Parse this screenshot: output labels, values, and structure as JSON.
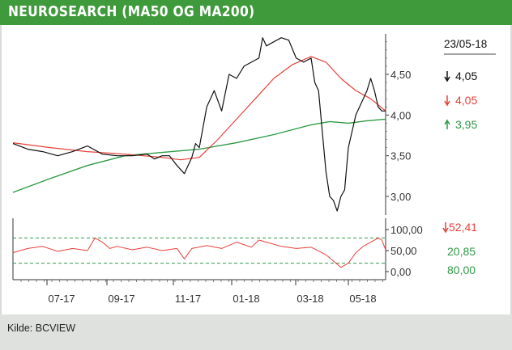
{
  "header": {
    "title": "NEUROSEARCH (MA50 OG MA200)"
  },
  "footer": {
    "source": "Kilde: BCVIEW"
  },
  "colors": {
    "brand": "#3f9a3b",
    "price": "#111111",
    "ma50": "#e8403a",
    "ma200": "#2f9a46",
    "rsi": "#e8403a"
  },
  "legend": {
    "date": "23/05-18",
    "items": [
      {
        "value": "4,05",
        "color": "#111111",
        "arrow": "down"
      },
      {
        "value": "4,05",
        "color": "#e8403a",
        "arrow": "down"
      },
      {
        "value": "3,95",
        "color": "#2f9a46",
        "arrow": "up"
      }
    ]
  },
  "rsi_legend": {
    "items": [
      {
        "value": "52,41",
        "color": "#e8403a",
        "arrow": "down"
      },
      {
        "value": "20,85",
        "color": "#2f9a46",
        "arrow": "none"
      },
      {
        "value": "80,00",
        "color": "#2f9a46",
        "arrow": "none"
      }
    ]
  },
  "chart_data": [
    {
      "type": "line",
      "title": "NEUROSEARCH (MA50 OG MA200)",
      "x_tick_labels": [
        "07-17",
        "09-17",
        "11-17",
        "01-18",
        "03-18",
        "05-18"
      ],
      "y_tick_labels": [
        "4,50",
        "4,00",
        "3,50",
        "3,00"
      ],
      "ylim": [
        2.75,
        5.0
      ],
      "grid": false,
      "legend_position": "right",
      "series": [
        {
          "name": "",
          "color": "#111111",
          "x": [
            0,
            4,
            8,
            12,
            16,
            20,
            24,
            28,
            32,
            36,
            38,
            40,
            42,
            44,
            46,
            48,
            49,
            50,
            52,
            54,
            56,
            58,
            60,
            62,
            64,
            66,
            67,
            68,
            70,
            72,
            74,
            76,
            78,
            80,
            81,
            82,
            83,
            84,
            85,
            86,
            87,
            88,
            89,
            90,
            91,
            92,
            93,
            94,
            95,
            96,
            97,
            98,
            99,
            100
          ],
          "y": [
            3.65,
            3.58,
            3.55,
            3.5,
            3.55,
            3.62,
            3.52,
            3.5,
            3.5,
            3.52,
            3.46,
            3.5,
            3.5,
            3.38,
            3.28,
            3.48,
            3.65,
            3.6,
            4.1,
            4.3,
            4.05,
            4.5,
            4.45,
            4.6,
            4.65,
            4.7,
            4.95,
            4.85,
            4.9,
            4.95,
            4.92,
            4.7,
            4.65,
            4.7,
            4.4,
            4.3,
            3.8,
            3.3,
            3.0,
            2.95,
            2.82,
            3.0,
            3.08,
            3.6,
            3.8,
            4.0,
            4.1,
            4.2,
            4.3,
            4.45,
            4.3,
            4.1,
            4.05,
            4.05
          ]
        },
        {
          "name": "",
          "color": "#e8403a",
          "x": [
            0,
            10,
            20,
            30,
            40,
            45,
            50,
            55,
            60,
            65,
            70,
            75,
            80,
            84,
            88,
            92,
            96,
            100
          ],
          "y": [
            3.66,
            3.6,
            3.55,
            3.52,
            3.48,
            3.45,
            3.48,
            3.7,
            3.95,
            4.2,
            4.45,
            4.62,
            4.72,
            4.65,
            4.45,
            4.3,
            4.2,
            4.05
          ]
        },
        {
          "name": "",
          "color": "#2f9a46",
          "x": [
            0,
            10,
            20,
            30,
            40,
            50,
            60,
            70,
            80,
            85,
            90,
            95,
            100
          ],
          "y": [
            3.05,
            3.22,
            3.38,
            3.5,
            3.54,
            3.58,
            3.66,
            3.76,
            3.88,
            3.92,
            3.9,
            3.93,
            3.95
          ]
        }
      ]
    },
    {
      "type": "line",
      "title": "",
      "x_tick_labels": [
        "07-17",
        "09-17",
        "11-17",
        "01-18",
        "03-18",
        "05-18"
      ],
      "y_tick_labels": [
        "100,00",
        "50,00",
        "0,00"
      ],
      "ylim": [
        0,
        100
      ],
      "reference_lines": [
        80,
        20
      ],
      "series": [
        {
          "name": "",
          "color": "#e8403a",
          "x": [
            0,
            4,
            8,
            12,
            16,
            20,
            22,
            24,
            26,
            28,
            32,
            36,
            40,
            44,
            46,
            48,
            52,
            56,
            60,
            64,
            66,
            68,
            72,
            76,
            80,
            84,
            86,
            88,
            90,
            92,
            94,
            96,
            98,
            99,
            100
          ],
          "y": [
            45,
            55,
            60,
            48,
            55,
            50,
            80,
            70,
            55,
            60,
            52,
            58,
            50,
            55,
            30,
            55,
            62,
            55,
            70,
            58,
            75,
            70,
            60,
            55,
            58,
            40,
            25,
            10,
            20,
            45,
            60,
            70,
            80,
            75,
            52
          ]
        }
      ]
    }
  ]
}
